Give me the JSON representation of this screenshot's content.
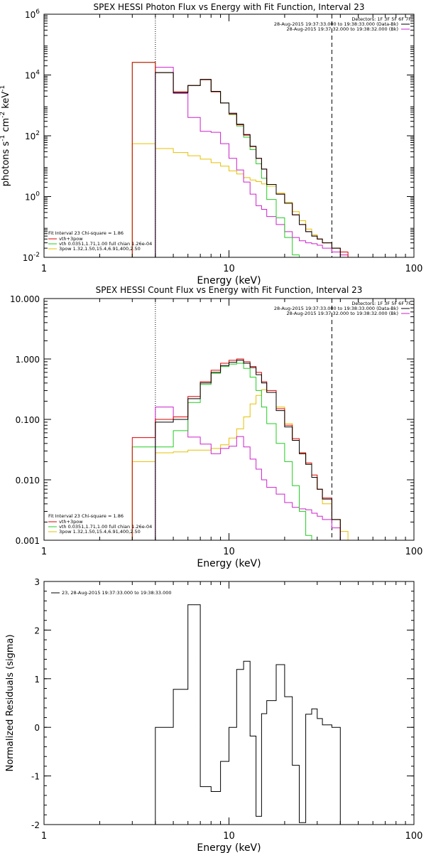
{
  "colors": {
    "data": "#000000",
    "total": "#e00000",
    "vth": "#22cc22",
    "bpow": "#e6c000",
    "bk": "#cc22cc"
  },
  "chart_data": [
    {
      "type": "line",
      "title": "SPEX HESSI Photon Flux vs Energy with Fit Function, Interval 23",
      "xlabel": "Energy (keV)",
      "ylabel": "photons s^-1 cm^-2 keV^-1",
      "x_scale": "log",
      "y_scale": "log",
      "xlim": [
        1,
        100
      ],
      "ylim": [
        0.01,
        1000000
      ],
      "x_ticks": [
        {
          "v": 1,
          "label": "1"
        },
        {
          "v": 10,
          "label": "10"
        },
        {
          "v": 100,
          "label": "100"
        }
      ],
      "y_ticks": [
        {
          "v": 0.01,
          "label": "10^-2"
        },
        {
          "v": 1,
          "label": "10^0"
        },
        {
          "v": 100,
          "label": "10^2"
        },
        {
          "v": 10000,
          "label": "10^4"
        },
        {
          "v": 1000000,
          "label": "10^6"
        }
      ],
      "edges": [
        3,
        4,
        5,
        6,
        7,
        8,
        9,
        10,
        11,
        12,
        13,
        14,
        15,
        16,
        18,
        20,
        22,
        24,
        26,
        28,
        30,
        32,
        36,
        40,
        44
      ],
      "vlines": [
        {
          "x": 4,
          "style": "dotted"
        },
        {
          "x": 36,
          "style": "dashed"
        }
      ],
      "legend_top": {
        "header": "Detectors: 1F 3F 5F 6F 7F",
        "lines": [
          {
            "text": "28-Aug-2015 19:37:33.000 to 19:38:33.000 (Data-Bk)",
            "color": "#000000"
          },
          {
            "text": "28-Aug-2015 19:37:32.000 to 19:38:32.000 (Bk)",
            "color": "#cc22cc"
          }
        ]
      },
      "legend_bottom": {
        "header": "Fit Interval 23   Chi-square = 1.86",
        "lines": [
          {
            "text": "vth+3pow",
            "color": "#e00000"
          },
          {
            "text": "vth 0.0351,1.71,1.00  full chian 1.26e-04",
            "color": "#22cc22"
          },
          {
            "text": "3pow 1.32,1.50,15.4,6.91,400,2.50",
            "color": "#e6c000"
          }
        ]
      },
      "series": [
        {
          "name": "Data-Bk",
          "color_key": "data",
          "values": [
            null,
            12000,
            2600,
            4500,
            7200,
            2900,
            1200,
            550,
            240,
            110,
            45,
            18,
            8,
            2.5,
            1.2,
            0.6,
            0.25,
            0.12,
            0.07,
            0.05,
            0.04,
            0.03,
            0.02,
            null
          ]
        },
        {
          "name": "vth+3pow",
          "color_key": "total",
          "values": [
            26000,
            12000,
            2800,
            4500,
            7000,
            2800,
            1200,
            520,
            230,
            105,
            44,
            18,
            8,
            2.5,
            1.2,
            0.6,
            0.25,
            0.12,
            0.07,
            0.05,
            0.04,
            0.03,
            0.02,
            0.015
          ]
        },
        {
          "name": "vth",
          "color_key": "vth",
          "values": [
            26000,
            12000,
            2800,
            4500,
            7000,
            2800,
            1200,
            500,
            210,
            90,
            35,
            12,
            4,
            0.8,
            0.2,
            0.045,
            0.012,
            null,
            null,
            null,
            null,
            null,
            null,
            null
          ]
        },
        {
          "name": "3pow",
          "color_key": "bpow",
          "values": [
            55,
            38,
            28,
            22,
            17,
            13,
            10,
            7,
            5.5,
            4.2,
            3.5,
            3.1,
            2.6,
            2.2,
            1.3,
            0.65,
            0.32,
            0.16,
            0.085,
            0.055,
            0.04,
            0.03,
            0.02,
            0.012
          ]
        },
        {
          "name": "Bk",
          "color_key": "bk",
          "values": [
            null,
            18000,
            2500,
            400,
            140,
            130,
            55,
            18,
            7.5,
            3.0,
            1.2,
            0.5,
            0.38,
            0.22,
            0.12,
            0.07,
            0.045,
            0.035,
            0.03,
            0.028,
            0.025,
            0.02,
            0.015,
            0.012
          ]
        }
      ]
    },
    {
      "type": "line",
      "title": "SPEX HESSI Count Flux vs Energy with Fit Function, Interval 23",
      "xlabel": "Energy (keV)",
      "ylabel": "",
      "x_scale": "log",
      "y_scale": "log",
      "xlim": [
        1,
        100
      ],
      "ylim": [
        0.001,
        10
      ],
      "x_ticks": [
        {
          "v": 1,
          "label": "1"
        },
        {
          "v": 10,
          "label": "10"
        },
        {
          "v": 100,
          "label": "100"
        }
      ],
      "y_ticks": [
        {
          "v": 0.001,
          "label": "0.001"
        },
        {
          "v": 0.01,
          "label": "0.010"
        },
        {
          "v": 0.1,
          "label": "0.100"
        },
        {
          "v": 1,
          "label": "1.000"
        },
        {
          "v": 10,
          "label": "10.000"
        }
      ],
      "edges": [
        3,
        4,
        5,
        6,
        7,
        8,
        9,
        10,
        11,
        12,
        13,
        14,
        15,
        16,
        18,
        20,
        22,
        24,
        26,
        28,
        30,
        32,
        36,
        40,
        44
      ],
      "vlines": [
        {
          "x": 4,
          "style": "dotted"
        },
        {
          "x": 36,
          "style": "dashed"
        }
      ],
      "legend_top": {
        "header": "Detectors: 1F 3F 5F 6F 7F",
        "lines": [
          {
            "text": "28-Aug-2015 19:37:33.000 to 19:38:33.000 (Data-Bk)",
            "color": "#000000"
          },
          {
            "text": "28-Aug-2015 19:37:32.000 to 19:38:32.000 (Bk)",
            "color": "#cc22cc"
          }
        ]
      },
      "legend_bottom": {
        "header": "Fit Interval 23   Chi-square = 1.86",
        "lines": [
          {
            "text": "vth+3pow",
            "color": "#e00000"
          },
          {
            "text": "vth 0.0351,1.71,1.00  full chian 1.26e-04",
            "color": "#22cc22"
          },
          {
            "text": "3pow 1.32,1.50,15.4,6.91,400,2.50",
            "color": "#e6c000"
          }
        ]
      },
      "series": [
        {
          "name": "Data-Bk",
          "color_key": "data",
          "values": [
            null,
            0.09,
            0.1,
            0.22,
            0.4,
            0.6,
            0.78,
            0.88,
            0.95,
            0.85,
            0.72,
            0.55,
            0.4,
            0.28,
            0.14,
            0.075,
            0.045,
            0.027,
            0.018,
            0.011,
            0.007,
            0.0048,
            0.0022,
            null
          ]
        },
        {
          "name": "vth+3pow",
          "color_key": "total",
          "values": [
            0.05,
            0.1,
            0.11,
            0.24,
            0.42,
            0.65,
            0.85,
            0.95,
            1.0,
            0.9,
            0.75,
            0.6,
            0.42,
            0.3,
            0.15,
            0.08,
            0.048,
            0.028,
            0.019,
            0.012,
            0.007,
            0.005,
            0.0022,
            null
          ]
        },
        {
          "name": "vth",
          "color_key": "vth",
          "values": [
            0.035,
            0.035,
            0.065,
            0.19,
            0.38,
            0.58,
            0.75,
            0.82,
            0.85,
            0.7,
            0.5,
            0.3,
            0.16,
            0.085,
            0.04,
            0.02,
            0.008,
            0.003,
            0.0012,
            null,
            null,
            null,
            null,
            null
          ]
        },
        {
          "name": "3pow",
          "color_key": "bpow",
          "values": [
            0.02,
            0.028,
            0.029,
            0.031,
            0.031,
            0.033,
            0.038,
            0.049,
            0.07,
            0.11,
            0.18,
            0.25,
            0.31,
            0.28,
            0.16,
            0.085,
            0.045,
            0.027,
            0.018,
            0.011,
            0.007,
            0.004,
            0.0022,
            0.0014
          ]
        },
        {
          "name": "Bk",
          "color_key": "bk",
          "values": [
            null,
            0.16,
            0.1,
            0.051,
            0.039,
            0.027,
            0.033,
            0.036,
            0.052,
            0.035,
            0.022,
            0.015,
            0.01,
            0.0075,
            0.0058,
            0.0042,
            0.0035,
            0.0033,
            0.0032,
            0.0028,
            0.0025,
            0.0022,
            0.0016,
            null
          ]
        }
      ]
    },
    {
      "type": "line",
      "title": "",
      "xlabel": "Energy (keV)",
      "ylabel": "Normalized Residuals (sigma)",
      "x_scale": "log",
      "y_scale": "linear",
      "xlim": [
        1,
        100
      ],
      "ylim": [
        -2,
        3
      ],
      "x_ticks": [
        {
          "v": 1,
          "label": "1"
        },
        {
          "v": 10,
          "label": "10"
        },
        {
          "v": 100,
          "label": "100"
        }
      ],
      "y_ticks": [
        {
          "v": -2,
          "label": "-2"
        },
        {
          "v": -1,
          "label": "-1"
        },
        {
          "v": 0,
          "label": "0"
        },
        {
          "v": 1,
          "label": "1"
        },
        {
          "v": 2,
          "label": "2"
        },
        {
          "v": 3,
          "label": "3"
        }
      ],
      "edges": [
        4,
        5,
        6,
        7,
        8,
        9,
        10,
        11,
        12,
        13,
        14,
        15,
        16,
        18,
        20,
        22,
        24,
        26,
        28,
        30,
        32,
        36,
        40
      ],
      "vlines": [],
      "legend": {
        "lines": [
          {
            "text": "23, 28-Aug-2015 19:37:33.000 to 19:38:33.000",
            "color": "#000000"
          }
        ]
      },
      "series": [
        {
          "name": "23, 28-Aug-2015 19:37:33.000 to 19:38:33.000",
          "color_key": "data",
          "values": [
            0.0,
            0.78,
            2.52,
            -1.22,
            -1.32,
            -0.7,
            0.0,
            1.19,
            1.36,
            -0.18,
            -1.83,
            0.28,
            0.55,
            1.29,
            0.63,
            -0.78,
            -1.96,
            0.27,
            0.38,
            0.18,
            0.05,
            0.0
          ]
        }
      ]
    }
  ]
}
